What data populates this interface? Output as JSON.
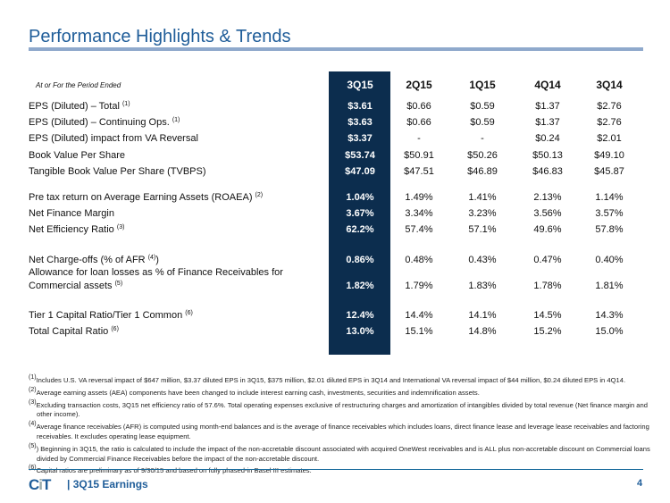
{
  "title": "Performance Highlights & Trends",
  "table": {
    "period_label": "At or For the Period Ended",
    "columns": [
      "3Q15",
      "2Q15",
      "1Q15",
      "4Q14",
      "3Q14"
    ],
    "rows": [
      {
        "label": "EPS (Diluted) – Total",
        "note": "(1)",
        "values": [
          "$3.61",
          "$0.66",
          "$0.59",
          "$1.37",
          "$2.76"
        ]
      },
      {
        "label": "EPS (Diluted) – Continuing Ops.",
        "note": "(1)",
        "values": [
          "$3.63",
          "$0.66",
          "$0.59",
          "$1.37",
          "$2.76"
        ]
      },
      {
        "label": "EPS (Diluted) impact from VA Reversal",
        "note": "",
        "values": [
          "$3.37",
          "-",
          "-",
          "$0.24",
          "$2.01"
        ]
      },
      {
        "label": "Book Value Per Share",
        "note": "",
        "values": [
          "$53.74",
          "$50.91",
          "$50.26",
          "$50.13",
          "$49.10"
        ]
      },
      {
        "label": "Tangible Book Value Per Share (TVBPS)",
        "note": "",
        "values": [
          "$47.09",
          "$47.51",
          "$46.89",
          "$46.83",
          "$45.87"
        ]
      },
      {
        "label": "Pre tax return on Average Earning Assets (ROAEA)",
        "note": "(2)",
        "values": [
          "1.04%",
          "1.49%",
          "1.41%",
          "2.13%",
          "1.14%"
        ]
      },
      {
        "label": "Net Finance Margin",
        "note": "",
        "values": [
          "3.67%",
          "3.34%",
          "3.23%",
          "3.56%",
          "3.57%"
        ]
      },
      {
        "label": "Net Efficiency Ratio",
        "note": "(3)",
        "values": [
          "62.2%",
          "57.4%",
          "57.1%",
          "49.6%",
          "57.8%"
        ]
      },
      {
        "label": "Net Charge-offs (% of AFR",
        "note": "(4)",
        "label_suffix": ")",
        "values": [
          "0.86%",
          "0.48%",
          "0.43%",
          "0.47%",
          "0.40%"
        ]
      },
      {
        "label": "Allowance for loan losses as % of Finance Receivables for",
        "label2": "Commercial assets",
        "note": "(5)",
        "values": [
          "1.82%",
          "1.79%",
          "1.83%",
          "1.78%",
          "1.81%"
        ]
      },
      {
        "label": "Tier 1 Capital Ratio/Tier 1 Common",
        "note": "(6)",
        "values": [
          "12.4%",
          "14.4%",
          "14.1%",
          "14.5%",
          "14.3%"
        ]
      },
      {
        "label": "Total Capital Ratio",
        "note": "(6)",
        "values": [
          "13.0%",
          "15.1%",
          "14.8%",
          "15.2%",
          "15.0%"
        ]
      }
    ]
  },
  "footnotes": [
    {
      "mark": "(1)",
      "text": "Includes U.S. VA reversal impact of  $647 million, $3.37 diluted EPS in 3Q15,  $375 million, $2.01 diluted EPS  in 3Q14  and International VA reversal impact of $44 million, $0.24 diluted EPS  in 4Q14."
    },
    {
      "mark": "(2)",
      "text": "Average earning assets (AEA)  components have been changed to include interest earning cash, investments, securities and indemnification assets."
    },
    {
      "mark": "(3)",
      "text": "Excluding transaction costs, 3Q15 net efficiency ratio of  57.6%. Total operating expenses exclusive of restructuring charges and amortization of intangibles divided by total revenue (Net finance margin and other income)."
    },
    {
      "mark": "(4)",
      "text": "Average finance receivables (AFR) is computed using month-end balances and is the average of finance receivables which includes loans, direct finance lease and leverage lease receivables and factoring receivables. It excludes operating lease equipment."
    },
    {
      "mark": "(5)",
      "text": ") Beginning in 3Q15, the ratio is calculated to include the impact of the non-accretable discount associated with acquired OneWest receivables and is ALL plus non-accretable discount on Commercial loans divided by Commercial Finance Receivables before the impact of the non-accretable discount."
    },
    {
      "mark": "(6)",
      "text": "Capital ratios are preliminary as of  9/30/15 and based on fully phased-in Basel III estimates."
    }
  ],
  "footer": {
    "logo": "CIT",
    "text": "| 3Q15 Earnings",
    "page": "4"
  }
}
